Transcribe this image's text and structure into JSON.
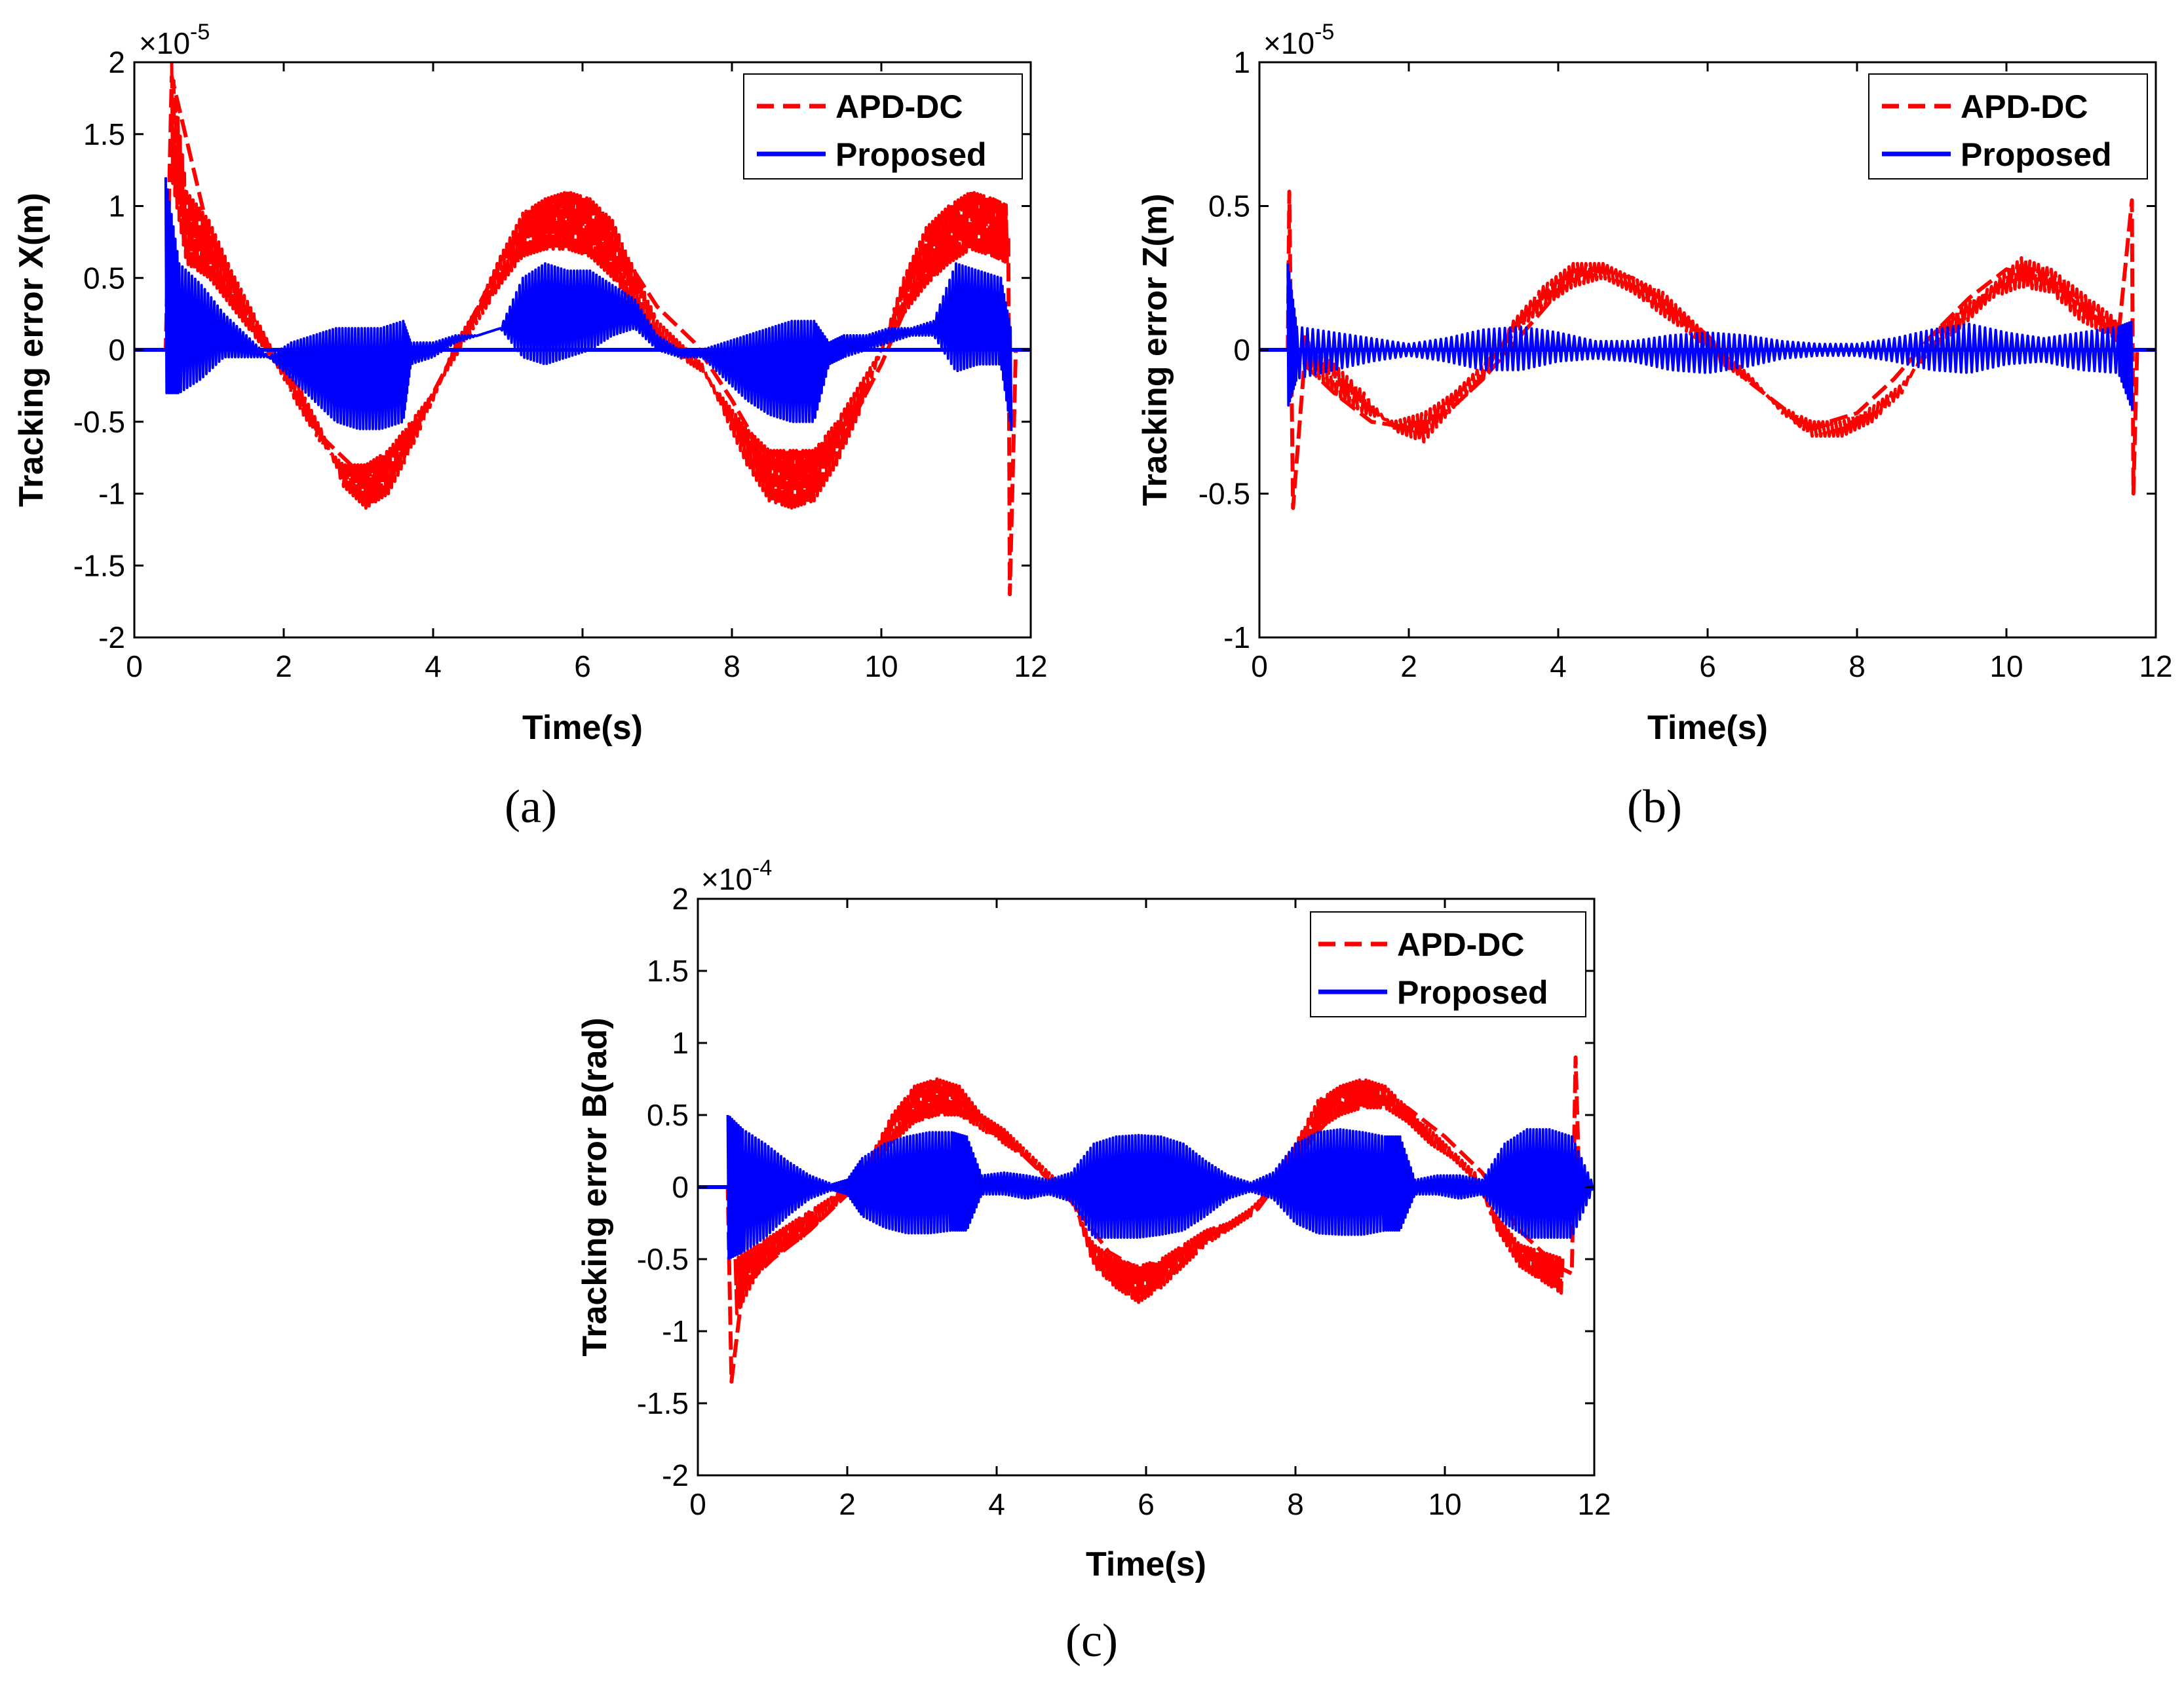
{
  "colors": {
    "apd": "#ff0000",
    "proposed": "#0000ff",
    "axis": "#000000"
  },
  "chart_data": [
    {
      "id": "a",
      "type": "line",
      "caption": "(a)",
      "xlabel": "Time(s)",
      "ylabel": "Tracking error X(m)",
      "multiplier": {
        "base": "×10",
        "exp": "-5"
      },
      "xlim": [
        0,
        12
      ],
      "ylim": [
        -2,
        2
      ],
      "xticks": [
        0,
        2,
        4,
        6,
        8,
        10,
        12
      ],
      "yticks": [
        -2,
        -1.5,
        -1,
        -0.5,
        0,
        0.5,
        1,
        1.5,
        2
      ],
      "grid": false,
      "legend_position": "top-right",
      "series": [
        {
          "name": "APD-DC",
          "style": "dashed",
          "x": [
            0,
            0.42,
            0.5,
            1.0,
            1.5,
            2.0,
            2.5,
            3.0,
            3.5,
            4.0,
            4.5,
            5.0,
            5.5,
            6.0,
            6.5,
            7.0,
            7.5,
            8.0,
            8.5,
            9.0,
            9.5,
            10.0,
            10.5,
            11.0,
            11.5,
            11.7,
            11.72,
            11.8,
            12
          ],
          "y": [
            0,
            0,
            1.9,
            0.8,
            0.3,
            -0.15,
            -0.6,
            -0.85,
            -0.8,
            -0.3,
            0.2,
            0.7,
            0.9,
            0.95,
            0.7,
            0.3,
            0.05,
            -0.35,
            -0.8,
            -0.85,
            -0.6,
            -0.1,
            0.5,
            0.8,
            0.9,
            0.8,
            -1.7,
            0,
            0
          ],
          "band_x": [
            0.5,
            0.7,
            1.0,
            1.3,
            1.6,
            1.9,
            2.2,
            2.5,
            2.8,
            3.1,
            3.4,
            3.7,
            4.0,
            4.3,
            4.6,
            4.9,
            5.2,
            5.5,
            5.8,
            6.1,
            6.4,
            6.7,
            7.0,
            7.3,
            7.6,
            7.9,
            8.2,
            8.5,
            8.8,
            9.1,
            9.4,
            9.7,
            10.0,
            10.3,
            10.6,
            10.9,
            11.2,
            11.5,
            11.7
          ],
          "band_lo": [
            1.2,
            0.6,
            0.5,
            0.3,
            0.1,
            -0.1,
            -0.4,
            -0.65,
            -0.8,
            -0.8,
            -0.7,
            -0.5,
            -0.3,
            -0.05,
            0.2,
            0.45,
            0.65,
            0.7,
            0.7,
            0.65,
            0.5,
            0.3,
            0.1,
            -0.05,
            -0.15,
            -0.35,
            -0.55,
            -0.7,
            -0.7,
            -0.7,
            -0.5,
            -0.25,
            0,
            0.25,
            0.45,
            0.6,
            0.7,
            0.65,
            0.6
          ],
          "band_hi": [
            2.0,
            1.1,
            0.9,
            0.55,
            0.25,
            -0.05,
            -0.25,
            -0.55,
            -0.95,
            -1.1,
            -1.0,
            -0.7,
            -0.35,
            0.05,
            0.3,
            0.65,
            0.95,
            1.05,
            1.1,
            1.05,
            0.9,
            0.55,
            0.2,
            0.05,
            -0.1,
            -0.45,
            -0.8,
            -1.05,
            -1.1,
            -1.05,
            -0.8,
            -0.45,
            0,
            0.5,
            0.85,
            1.0,
            1.1,
            1.05,
            1.0
          ]
        },
        {
          "name": "Proposed",
          "style": "solid",
          "x": [
            0,
            0.4,
            12
          ],
          "y": [
            0,
            0,
            0
          ],
          "band_x": [
            0.42,
            0.6,
            0.9,
            1.2,
            1.5,
            1.8,
            2.1,
            2.4,
            2.7,
            3.0,
            3.3,
            3.6,
            3.7,
            4.0,
            4.3,
            4.6,
            4.9,
            5.2,
            5.5,
            5.8,
            6.1,
            6.4,
            6.7,
            7.0,
            7.3,
            7.6,
            7.9,
            8.2,
            8.5,
            8.8,
            9.1,
            9.3,
            9.5,
            9.8,
            10.1,
            10.4,
            10.7,
            11.0,
            11.3,
            11.6,
            11.75
          ],
          "band_lo": [
            -0.3,
            -0.3,
            -0.2,
            -0.05,
            -0.05,
            -0.05,
            -0.2,
            -0.35,
            -0.5,
            -0.55,
            -0.55,
            -0.5,
            -0.1,
            -0.05,
            0.05,
            0.1,
            0.15,
            -0.05,
            -0.1,
            -0.05,
            0,
            0.1,
            0.15,
            0,
            -0.05,
            -0.05,
            -0.2,
            -0.35,
            -0.45,
            -0.5,
            -0.5,
            -0.1,
            -0.05,
            0,
            0.05,
            0.1,
            0.1,
            -0.15,
            -0.1,
            -0.1,
            -0.6
          ],
          "band_hi": [
            1.2,
            0.6,
            0.45,
            0.25,
            0.1,
            -0.05,
            0.05,
            0.1,
            0.15,
            0.15,
            0.15,
            0.2,
            0.05,
            0.05,
            0.1,
            0.1,
            0.15,
            0.5,
            0.6,
            0.55,
            0.55,
            0.45,
            0.35,
            0.1,
            0,
            0,
            0.05,
            0.1,
            0.15,
            0.2,
            0.2,
            0.05,
            0.1,
            0.1,
            0.15,
            0.15,
            0.2,
            0.6,
            0.55,
            0.5,
            0.1
          ]
        }
      ]
    },
    {
      "id": "b",
      "type": "line",
      "caption": "(b)",
      "xlabel": "Time(s)",
      "ylabel": "Tracking error Z(m)",
      "multiplier": {
        "base": "×10",
        "exp": "-5"
      },
      "xlim": [
        0,
        12
      ],
      "ylim": [
        -1,
        1
      ],
      "xticks": [
        0,
        2,
        4,
        6,
        8,
        10,
        12
      ],
      "yticks": [
        -1,
        -0.5,
        0,
        0.5,
        1
      ],
      "grid": false,
      "legend_position": "top-right",
      "series": [
        {
          "name": "APD-DC",
          "style": "dashed",
          "x": [
            0,
            0.38,
            0.4,
            0.45,
            0.6,
            1.0,
            1.5,
            2.0,
            2.5,
            3.0,
            3.5,
            4.0,
            4.4,
            5.0,
            5.5,
            6.0,
            6.5,
            7.0,
            7.3,
            7.5,
            8.0,
            8.5,
            9.0,
            9.5,
            10.0,
            10.5,
            11.0,
            11.5,
            11.68,
            11.7,
            11.75,
            12
          ],
          "y": [
            0,
            0,
            0.55,
            -0.55,
            -0.05,
            -0.15,
            -0.25,
            -0.27,
            -0.22,
            -0.1,
            0.05,
            0.2,
            0.28,
            0.25,
            0.15,
            0.05,
            -0.1,
            -0.2,
            -0.28,
            -0.26,
            -0.22,
            -0.1,
            0.05,
            0.18,
            0.28,
            0.25,
            0.15,
            0.05,
            0.52,
            -0.5,
            0,
            0
          ],
          "band_x": [
            0.6,
            1.0,
            1.4,
            1.8,
            2.2,
            2.6,
            3.0,
            3.4,
            3.8,
            4.2,
            4.6,
            5.0,
            5.4,
            5.8,
            6.2,
            6.6,
            7.0,
            7.4,
            7.8,
            8.2,
            8.6,
            9.0,
            9.4,
            9.8,
            10.2,
            10.6,
            11.0,
            11.4,
            11.6
          ],
          "band_lo": [
            -0.05,
            -0.15,
            -0.22,
            -0.25,
            -0.22,
            -0.15,
            -0.05,
            0.05,
            0.15,
            0.22,
            0.25,
            0.2,
            0.12,
            0.05,
            -0.05,
            -0.12,
            -0.2,
            -0.25,
            -0.25,
            -0.2,
            -0.12,
            0,
            0.08,
            0.18,
            0.22,
            0.2,
            0.1,
            0.05,
            0
          ],
          "band_hi": [
            0.05,
            -0.05,
            -0.15,
            -0.28,
            -0.32,
            -0.2,
            -0.1,
            0.1,
            0.22,
            0.3,
            0.3,
            0.25,
            0.2,
            0.1,
            0,
            -0.1,
            -0.22,
            -0.3,
            -0.3,
            -0.25,
            -0.15,
            0.05,
            0.15,
            0.22,
            0.32,
            0.28,
            0.2,
            0.12,
            0.05
          ]
        },
        {
          "name": "Proposed",
          "style": "solid",
          "x": [
            0,
            0.38,
            12
          ],
          "y": [
            0,
            0,
            0
          ],
          "band_x": [
            0.38,
            0.5,
            1.0,
            1.5,
            2.0,
            2.5,
            3.0,
            3.5,
            4.0,
            4.5,
            5.0,
            5.5,
            6.0,
            6.5,
            7.0,
            7.5,
            8.0,
            8.5,
            9.0,
            9.5,
            10.0,
            10.5,
            11.0,
            11.5,
            11.7
          ],
          "band_lo": [
            -0.2,
            -0.1,
            -0.07,
            -0.04,
            -0.02,
            -0.04,
            -0.07,
            -0.07,
            -0.04,
            -0.03,
            -0.04,
            -0.07,
            -0.08,
            -0.06,
            -0.03,
            -0.02,
            -0.02,
            -0.04,
            -0.07,
            -0.08,
            -0.05,
            -0.04,
            -0.07,
            -0.08,
            -0.22
          ],
          "band_hi": [
            0.3,
            0.08,
            0.06,
            0.04,
            0.02,
            0.04,
            0.07,
            0.08,
            0.06,
            0.03,
            0.03,
            0.05,
            0.06,
            0.05,
            0.03,
            0.02,
            0.02,
            0.04,
            0.07,
            0.09,
            0.06,
            0.04,
            0.06,
            0.08,
            0.1
          ]
        }
      ]
    },
    {
      "id": "c",
      "type": "line",
      "caption": "(c)",
      "xlabel": "Time(s)",
      "ylabel": "Tracking error B(rad)",
      "multiplier": {
        "base": "×10",
        "exp": "-4"
      },
      "xlim": [
        0,
        12
      ],
      "ylim": [
        -2,
        2
      ],
      "xticks": [
        0,
        2,
        4,
        6,
        8,
        10,
        12
      ],
      "yticks": [
        -2,
        -1.5,
        -1,
        -0.5,
        0,
        0.5,
        1,
        1.5,
        2
      ],
      "grid": false,
      "legend_position": "top-right",
      "series": [
        {
          "name": "APD-DC",
          "style": "dashed",
          "x": [
            0,
            0.4,
            0.45,
            0.6,
            1.0,
            1.5,
            2.0,
            2.5,
            3.0,
            3.5,
            4.0,
            4.5,
            5.0,
            5.5,
            6.0,
            6.5,
            7.0,
            7.5,
            8.0,
            8.5,
            9.0,
            9.5,
            10.0,
            10.5,
            11.0,
            11.5,
            11.7,
            11.75,
            11.8,
            12
          ],
          "y": [
            0,
            0,
            -1.35,
            -0.7,
            -0.5,
            -0.3,
            -0.05,
            0.3,
            0.55,
            0.6,
            0.4,
            0.15,
            -0.1,
            -0.45,
            -0.6,
            -0.45,
            -0.3,
            -0.15,
            0.2,
            0.5,
            0.65,
            0.55,
            0.35,
            0.1,
            -0.3,
            -0.55,
            -0.6,
            0.9,
            0,
            0
          ],
          "band_x": [
            0.5,
            0.8,
            1.1,
            1.4,
            1.7,
            2.0,
            2.3,
            2.6,
            2.9,
            3.2,
            3.5,
            3.8,
            4.1,
            4.4,
            4.7,
            5.0,
            5.3,
            5.6,
            5.9,
            6.2,
            6.5,
            6.8,
            7.1,
            7.4,
            7.7,
            8.0,
            8.3,
            8.6,
            8.9,
            9.2,
            9.5,
            9.8,
            10.1,
            10.4,
            10.7,
            11.0,
            11.3,
            11.6
          ],
          "band_lo": [
            -0.9,
            -0.6,
            -0.45,
            -0.35,
            -0.2,
            -0.05,
            0.1,
            0.3,
            0.45,
            0.5,
            0.5,
            0.4,
            0.3,
            0.2,
            0.05,
            -0.1,
            -0.4,
            -0.5,
            -0.55,
            -0.5,
            -0.4,
            -0.3,
            -0.25,
            -0.15,
            0,
            0.15,
            0.4,
            0.5,
            0.55,
            0.55,
            0.45,
            0.3,
            0.2,
            0.05,
            -0.2,
            -0.4,
            -0.45,
            -0.5
          ],
          "band_hi": [
            -0.5,
            -0.4,
            -0.3,
            -0.2,
            -0.1,
            0,
            0.2,
            0.5,
            0.7,
            0.75,
            0.7,
            0.5,
            0.4,
            0.25,
            0.1,
            -0.05,
            -0.55,
            -0.7,
            -0.8,
            -0.7,
            -0.55,
            -0.4,
            -0.3,
            -0.2,
            0.05,
            0.3,
            0.6,
            0.7,
            0.75,
            0.7,
            0.55,
            0.4,
            0.25,
            0.1,
            -0.3,
            -0.55,
            -0.65,
            -0.75
          ]
        },
        {
          "name": "Proposed",
          "style": "solid",
          "x": [
            0,
            0.35,
            12
          ],
          "y": [
            0,
            0,
            0
          ],
          "band_x": [
            0.4,
            0.6,
            0.9,
            1.2,
            1.5,
            1.8,
            2.0,
            2.2,
            2.5,
            2.8,
            3.1,
            3.4,
            3.6,
            3.8,
            4.1,
            4.4,
            4.7,
            5.0,
            5.3,
            5.6,
            5.9,
            6.2,
            6.5,
            6.8,
            7.1,
            7.4,
            7.7,
            8.0,
            8.3,
            8.6,
            8.9,
            9.2,
            9.4,
            9.6,
            9.9,
            10.2,
            10.5,
            10.8,
            11.1,
            11.4,
            11.7,
            12.0
          ],
          "band_lo": [
            -0.5,
            -0.45,
            -0.35,
            -0.2,
            -0.08,
            -0.02,
            -0.05,
            -0.2,
            -0.28,
            -0.32,
            -0.32,
            -0.3,
            -0.3,
            -0.05,
            -0.05,
            -0.08,
            -0.05,
            -0.1,
            -0.35,
            -0.35,
            -0.35,
            -0.33,
            -0.3,
            -0.2,
            -0.08,
            -0.03,
            -0.08,
            -0.25,
            -0.32,
            -0.33,
            -0.33,
            -0.3,
            -0.3,
            -0.05,
            -0.05,
            -0.08,
            -0.05,
            -0.25,
            -0.35,
            -0.35,
            -0.35,
            0
          ],
          "band_hi": [
            0.5,
            0.4,
            0.3,
            0.18,
            0.08,
            0.02,
            0.05,
            0.2,
            0.3,
            0.35,
            0.38,
            0.38,
            0.35,
            0.08,
            0.1,
            0.08,
            0.05,
            0.1,
            0.3,
            0.35,
            0.36,
            0.35,
            0.3,
            0.18,
            0.08,
            0.03,
            0.1,
            0.3,
            0.38,
            0.4,
            0.38,
            0.35,
            0.35,
            0.05,
            0.08,
            0.08,
            0.05,
            0.3,
            0.4,
            0.4,
            0.35,
            0
          ]
        }
      ]
    }
  ]
}
